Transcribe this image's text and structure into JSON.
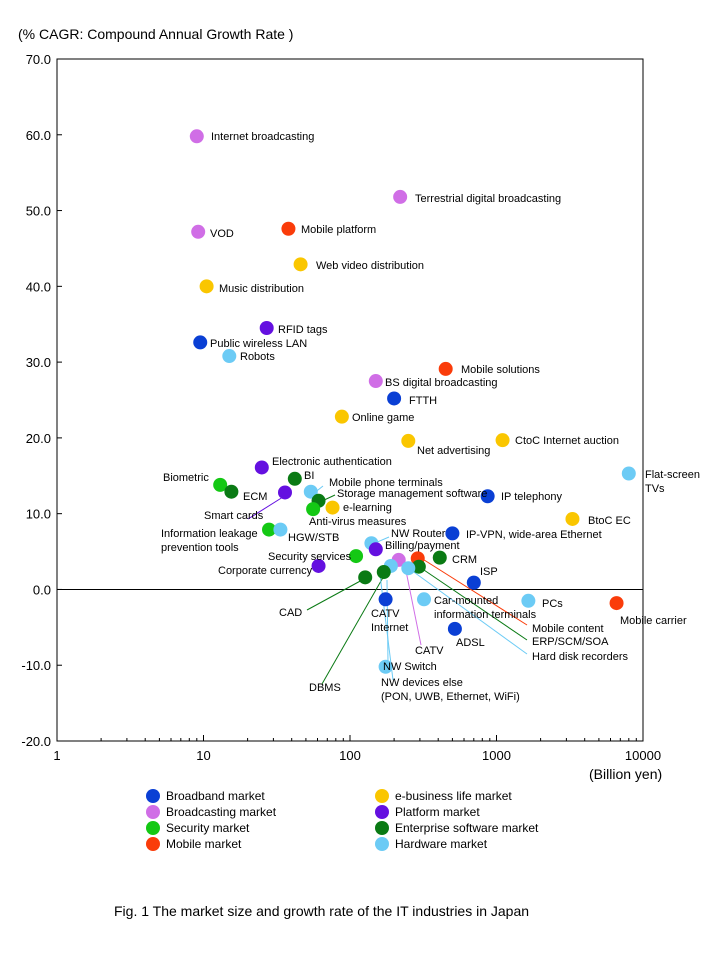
{
  "figure": {
    "caption": "Fig. 1  The market size and growth rate of the IT industries in Japan"
  },
  "chart_data": {
    "type": "scatter",
    "title": "",
    "ylabel": "(% CAGR: Compound Annual Growth Rate )",
    "xlabel": "(Billion yen)",
    "xscale": "log",
    "xlim": [
      1,
      10000
    ],
    "ylim": [
      -20,
      70
    ],
    "grid": false,
    "legend_position": "bottom",
    "x_ticks": [
      "1",
      "10",
      "100",
      "1000",
      "10000"
    ],
    "y_ticks": [
      "70.0",
      "60.0",
      "50.0",
      "40.0",
      "30.0",
      "20.0",
      "10.0",
      "0.0",
      "-10.0",
      "-20.0"
    ],
    "x_tick_values": [
      1,
      10,
      100,
      1000,
      10000
    ],
    "y_tick_values": [
      70,
      60,
      50,
      40,
      30,
      20,
      10,
      0,
      -10,
      -20
    ],
    "categories": [
      {
        "key": "broadband",
        "name": "Broadband market",
        "color": "#0a3fd4"
      },
      {
        "key": "ebusiness",
        "name": "e-business life market",
        "color": "#fac600"
      },
      {
        "key": "broadcasting",
        "name": "Broadcasting market",
        "color": "#d06ee6"
      },
      {
        "key": "platform",
        "name": "Platform market",
        "color": "#6410e0"
      },
      {
        "key": "security",
        "name": "Security market",
        "color": "#14c814"
      },
      {
        "key": "enterprise",
        "name": "Enterprise software market",
        "color": "#0a7a14"
      },
      {
        "key": "mobile",
        "name": "Mobile market",
        "color": "#fa3c0a"
      },
      {
        "key": "hardware",
        "name": "Hardware market",
        "color": "#6ccbf5"
      }
    ],
    "points": [
      {
        "label": "Internet broadcasting",
        "cat": "broadcasting",
        "x": 9.0,
        "y": 59.8
      },
      {
        "label": "Terrestrial digital broadcasting",
        "cat": "broadcasting",
        "x": 220,
        "y": 51.8
      },
      {
        "label": "VOD",
        "cat": "broadcasting",
        "x": 9.2,
        "y": 47.2
      },
      {
        "label": "Mobile platform",
        "cat": "mobile",
        "x": 38,
        "y": 47.6
      },
      {
        "label": "Web video distribution",
        "cat": "ebusiness",
        "x": 46,
        "y": 42.9
      },
      {
        "label": "Music distribution",
        "cat": "ebusiness",
        "x": 10.5,
        "y": 40.0
      },
      {
        "label": "RFID tags",
        "cat": "platform",
        "x": 27,
        "y": 34.5
      },
      {
        "label": "Public wireless LAN",
        "cat": "broadband",
        "x": 9.5,
        "y": 32.6
      },
      {
        "label": "Robots",
        "cat": "hardware",
        "x": 15,
        "y": 30.8
      },
      {
        "label": "Mobile solutions",
        "cat": "mobile",
        "x": 450,
        "y": 29.1
      },
      {
        "label": "BS digital broadcasting",
        "cat": "broadcasting",
        "x": 150,
        "y": 27.5
      },
      {
        "label": "FTTH",
        "cat": "broadband",
        "x": 200,
        "y": 25.2
      },
      {
        "label": "Online game",
        "cat": "ebusiness",
        "x": 88,
        "y": 22.8
      },
      {
        "label": "Net advertising",
        "cat": "ebusiness",
        "x": 250,
        "y": 19.6
      },
      {
        "label": "CtoC Internet auction",
        "cat": "ebusiness",
        "x": 1100,
        "y": 19.7
      },
      {
        "label": "Electronic authentication",
        "cat": "platform",
        "x": 25,
        "y": 16.1
      },
      {
        "label": "Flat-screen\nTVs",
        "cat": "hardware",
        "x": 8000,
        "y": 15.3
      },
      {
        "label": "BI",
        "cat": "enterprise",
        "x": 42,
        "y": 14.6
      },
      {
        "label": "Biometric",
        "cat": "security",
        "x": 13,
        "y": 13.8
      },
      {
        "label": "ECM",
        "cat": "enterprise",
        "x": 15.5,
        "y": 12.9
      },
      {
        "label": "Mobile phone terminals",
        "cat": "hardware",
        "x": 54,
        "y": 12.9
      },
      {
        "label": "Storage management software",
        "cat": "enterprise",
        "x": 61,
        "y": 11.7
      },
      {
        "label": "IP telephony",
        "cat": "broadband",
        "x": 870,
        "y": 12.3
      },
      {
        "label": "Smart cards",
        "cat": "platform",
        "x": 36,
        "y": 12.8
      },
      {
        "label": "e-learning",
        "cat": "ebusiness",
        "x": 76,
        "y": 10.8
      },
      {
        "label": "Anti-virus measures",
        "cat": "security",
        "x": 56,
        "y": 10.6
      },
      {
        "label": "BtoC EC",
        "cat": "ebusiness",
        "x": 3300,
        "y": 9.3
      },
      {
        "label": "Information leakage\nprevention tools",
        "cat": "security",
        "x": 28,
        "y": 7.9
      },
      {
        "label": "HGW/STB",
        "cat": "hardware",
        "x": 33.5,
        "y": 7.9
      },
      {
        "label": "IP-VPN, wide-area Ethernet",
        "cat": "broadband",
        "x": 500,
        "y": 7.4
      },
      {
        "label": "NW Router",
        "cat": "hardware",
        "x": 140,
        "y": 6.1
      },
      {
        "label": "Billing/payment",
        "cat": "platform",
        "x": 150,
        "y": 5.3
      },
      {
        "label": "Security services",
        "cat": "security",
        "x": 110,
        "y": 4.4
      },
      {
        "label": "CRM",
        "cat": "enterprise",
        "x": 410,
        "y": 4.2
      },
      {
        "label": "Mobile content",
        "cat": "mobile",
        "x": 290,
        "y": 4.1
      },
      {
        "label": "CATV",
        "cat": "broadcasting",
        "x": 215,
        "y": 3.9
      },
      {
        "label": "ERP/SCM/SOA",
        "cat": "enterprise",
        "x": 295,
        "y": 3.0
      },
      {
        "label": "Hard disk recorders",
        "cat": "hardware",
        "x": 250,
        "y": 2.8
      },
      {
        "label": "NW Switch",
        "cat": "hardware",
        "x": 190,
        "y": 3.1
      },
      {
        "label": "Corporate currency",
        "cat": "platform",
        "x": 61,
        "y": 3.1
      },
      {
        "label": "DBMS",
        "cat": "enterprise",
        "x": 170,
        "y": 2.3
      },
      {
        "label": "CAD",
        "cat": "enterprise",
        "x": 127,
        "y": 1.6
      },
      {
        "label": "ISP",
        "cat": "broadband",
        "x": 700,
        "y": 0.9
      },
      {
        "label": "CATV\nInternet",
        "cat": "broadband",
        "x": 175,
        "y": -1.3
      },
      {
        "label": "Car-mounted\ninformation terminals",
        "cat": "hardware",
        "x": 320,
        "y": -1.3
      },
      {
        "label": "PCs",
        "cat": "hardware",
        "x": 1650,
        "y": -1.5
      },
      {
        "label": "Mobile carrier",
        "cat": "mobile",
        "x": 6600,
        "y": -1.8
      },
      {
        "label": "ADSL",
        "cat": "broadband",
        "x": 520,
        "y": -5.2
      },
      {
        "label": "NW devices else\n(PON, UWB, Ethernet, WiFi)",
        "cat": "hardware",
        "x": 175,
        "y": -10.2
      }
    ]
  }
}
